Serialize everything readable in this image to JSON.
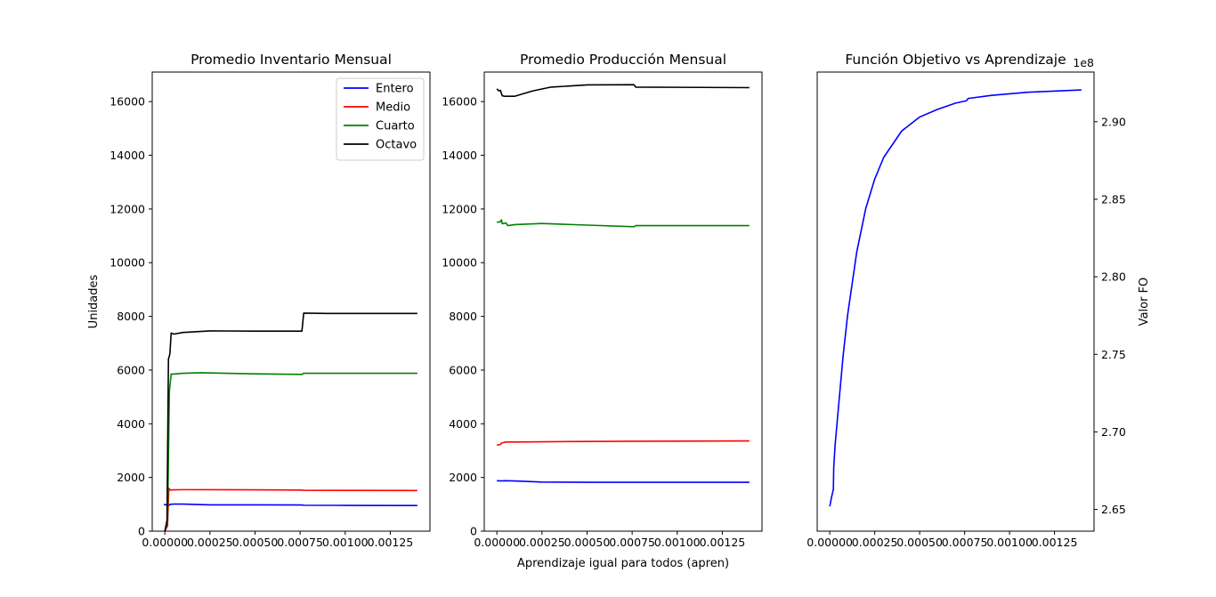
{
  "chart_data": [
    {
      "type": "line",
      "title": "Promedio Inventario Mensual",
      "xlabel": "",
      "ylabel": "Unidades",
      "xlim": [
        -7e-05,
        0.00147
      ],
      "ylim": [
        0,
        17100
      ],
      "xticks": [
        0.0,
        0.00025,
        0.0005,
        0.00075,
        0.001,
        0.00125
      ],
      "xtick_labels": [
        "0.00000",
        "0.00025",
        "0.00050",
        "0.00075",
        "0.00100",
        "0.00125"
      ],
      "yticks": [
        0,
        2000,
        4000,
        6000,
        8000,
        10000,
        12000,
        14000,
        16000
      ],
      "ytick_labels": [
        "0",
        "2000",
        "4000",
        "6000",
        "8000",
        "10000",
        "12000",
        "14000",
        "16000"
      ],
      "legend": "upper right",
      "grid": false,
      "series": [
        {
          "name": "Entero",
          "color": "#0000ff",
          "x": [
            -5e-06,
            2e-05,
            3e-05,
            5e-05,
            0.0001,
            0.00025,
            0.0005,
            0.00076,
            0.00077,
            0.001,
            0.0014
          ],
          "y": [
            1000,
            950,
            1000,
            1010,
            1010,
            980,
            980,
            975,
            965,
            960,
            955
          ]
        },
        {
          "name": "Medio",
          "color": "#ff0000",
          "x": [
            0.0,
            1.5e-05,
            2.2e-05,
            3e-05,
            5e-05,
            0.0001,
            0.0005,
            0.00076,
            0.00077,
            0.0014
          ],
          "y": [
            0,
            200,
            1600,
            1530,
            1540,
            1545,
            1540,
            1530,
            1520,
            1515
          ]
        },
        {
          "name": "Cuarto",
          "color": "#008000",
          "x": [
            0.0,
            1.5e-05,
            2.5e-05,
            3.5e-05,
            5e-05,
            0.0001,
            0.0002,
            0.0005,
            0.00076,
            0.00077,
            0.001,
            0.0014
          ],
          "y": [
            0,
            400,
            5200,
            5850,
            5850,
            5880,
            5900,
            5860,
            5840,
            5880,
            5880,
            5880
          ]
        },
        {
          "name": "Octavo",
          "color": "#000000",
          "x": [
            0.0,
            1.2e-05,
            2e-05,
            2.8e-05,
            3.5e-05,
            5e-05,
            0.0001,
            0.00025,
            0.0005,
            0.00076,
            0.00077,
            0.0009,
            0.0014
          ],
          "y": [
            0,
            400,
            6400,
            6600,
            7380,
            7340,
            7400,
            7460,
            7450,
            7450,
            8120,
            8110,
            8110
          ]
        }
      ]
    },
    {
      "type": "line",
      "title": "Promedio Producción Mensual",
      "xlabel": "Aprendizaje igual para todos (apren)",
      "ylabel": "",
      "xlim": [
        -7e-05,
        0.00147
      ],
      "ylim": [
        0,
        17100
      ],
      "xticks": [
        0.0,
        0.00025,
        0.0005,
        0.00075,
        0.001,
        0.00125
      ],
      "xtick_labels": [
        "0.00000",
        "0.00025",
        "0.00050",
        "0.00075",
        "0.00100",
        "0.00125"
      ],
      "yticks": [
        0,
        2000,
        4000,
        6000,
        8000,
        10000,
        12000,
        14000,
        16000
      ],
      "ytick_labels": [
        "0",
        "2000",
        "4000",
        "6000",
        "8000",
        "10000",
        "12000",
        "14000",
        "16000"
      ],
      "grid": false,
      "series": [
        {
          "color": "#0000ff",
          "x": [
            0.0,
            2e-05,
            5e-05,
            0.0001,
            0.00025,
            0.0005,
            0.00076,
            0.0014
          ],
          "y": [
            1880,
            1870,
            1880,
            1870,
            1830,
            1820,
            1820,
            1820
          ]
        },
        {
          "color": "#ff0000",
          "x": [
            0.0,
            2e-05,
            2.5e-05,
            5e-05,
            0.0001,
            0.00025,
            0.0005,
            0.00076,
            0.0014
          ],
          "y": [
            3200,
            3230,
            3280,
            3320,
            3320,
            3330,
            3340,
            3350,
            3360
          ]
        },
        {
          "color": "#008000",
          "x": [
            0.0,
            1e-05,
            2e-05,
            2.5e-05,
            3e-05,
            5e-05,
            6e-05,
            0.0001,
            0.00025,
            0.0005,
            0.00076,
            0.00077,
            0.0014
          ],
          "y": [
            11520,
            11510,
            11530,
            11600,
            11450,
            11480,
            11380,
            11420,
            11460,
            11400,
            11340,
            11380,
            11380
          ]
        },
        {
          "color": "#000000",
          "x": [
            0.0,
            1e-05,
            2e-05,
            2.5e-05,
            3e-05,
            4e-05,
            0.0001,
            0.0002,
            0.0003,
            0.0005,
            0.00076,
            0.00077,
            0.0014
          ],
          "y": [
            16480,
            16400,
            16420,
            16300,
            16220,
            16200,
            16200,
            16400,
            16540,
            16620,
            16630,
            16540,
            16520
          ]
        }
      ]
    },
    {
      "type": "line",
      "title": "Función Objetivo vs Aprendizaje",
      "xlabel": "",
      "ylabel": "Valor FO",
      "y_offset_label": "1e8",
      "yaxis_position": "right",
      "xlim": [
        -7e-05,
        0.00147
      ],
      "ylim": [
        2.636,
        2.932
      ],
      "xticks": [
        0.0,
        0.00025,
        0.0005,
        0.00075,
        0.001,
        0.00125
      ],
      "xtick_labels": [
        "0.00000",
        "0.00025",
        "0.00050",
        "0.00075",
        "0.00100",
        "0.00125"
      ],
      "yticks": [
        2.65,
        2.7,
        2.75,
        2.8,
        2.85,
        2.9
      ],
      "ytick_labels": [
        "2.65",
        "2.70",
        "2.75",
        "2.80",
        "2.85",
        "2.90"
      ],
      "grid": false,
      "series": [
        {
          "color": "#0000ff",
          "x": [
            0.0,
            1e-05,
            2e-05,
            2.2e-05,
            3e-05,
            4e-05,
            5e-05,
            7.5e-05,
            0.0001,
            0.00015,
            0.0002,
            0.00025,
            0.0003,
            0.0004,
            0.0005,
            0.0006,
            0.0007,
            0.00076,
            0.00077,
            0.0009,
            0.001,
            0.0011,
            0.0012,
            0.0013,
            0.0014
          ],
          "y": [
            2.652,
            2.658,
            2.663,
            2.677,
            2.692,
            2.705,
            2.718,
            2.75,
            2.776,
            2.816,
            2.844,
            2.863,
            2.877,
            2.894,
            2.903,
            2.908,
            2.912,
            2.9135,
            2.915,
            2.917,
            2.918,
            2.919,
            2.9195,
            2.92,
            2.9205
          ]
        }
      ]
    }
  ]
}
